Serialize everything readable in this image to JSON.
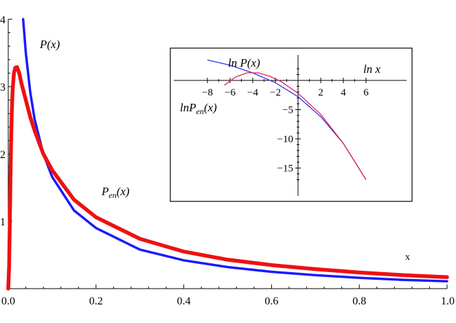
{
  "chart_data": [
    {
      "type": "line",
      "title": "",
      "xlabel": "x",
      "ylabel": "",
      "xlim": [
        0,
        1
      ],
      "ylim": [
        0,
        4
      ],
      "x_ticks": [
        "0.0",
        "0.2",
        "0.4",
        "0.6",
        "0.8",
        "1.0"
      ],
      "y_ticks": [
        "1",
        "2",
        "3",
        "4"
      ],
      "series": [
        {
          "name": "P(x)",
          "color": "#1a1aff",
          "x": [
            0.034,
            0.04,
            0.05,
            0.06,
            0.08,
            0.1,
            0.15,
            0.2,
            0.3,
            0.4,
            0.5,
            0.6,
            0.7,
            0.8,
            0.9,
            1.0
          ],
          "y": [
            4.0,
            3.5,
            2.92,
            2.52,
            2.0,
            1.66,
            1.16,
            0.9,
            0.58,
            0.42,
            0.32,
            0.25,
            0.2,
            0.16,
            0.13,
            0.11
          ]
        },
        {
          "name": "P_en(x)",
          "color": "#ee1111",
          "x": [
            0.0,
            0.002,
            0.004,
            0.006,
            0.008,
            0.01,
            0.013,
            0.016,
            0.02,
            0.025,
            0.03,
            0.04,
            0.05,
            0.06,
            0.08,
            0.1,
            0.15,
            0.2,
            0.3,
            0.4,
            0.5,
            0.6,
            0.7,
            0.8,
            0.9,
            1.0
          ],
          "y": [
            0.0,
            0.35,
            1.2,
            2.0,
            2.6,
            2.95,
            3.2,
            3.28,
            3.29,
            3.2,
            3.05,
            2.8,
            2.55,
            2.35,
            2.0,
            1.76,
            1.32,
            1.06,
            0.74,
            0.55,
            0.43,
            0.35,
            0.29,
            0.24,
            0.2,
            0.17
          ]
        }
      ],
      "annotations": [
        "P(x)",
        "P",
        "en",
        "(x)",
        "x"
      ]
    },
    {
      "type": "line",
      "title": "",
      "xlabel": "ln x",
      "ylabel": "ln P(x)",
      "xlim": [
        -8.5,
        6.5
      ],
      "ylim": [
        -18,
        4
      ],
      "x_ticks": [
        "−8",
        "−6",
        "−4",
        "−2",
        "2",
        "4",
        "6"
      ],
      "y_ticks": [
        "−5",
        "−10",
        "−15"
      ],
      "series": [
        {
          "name": "ln P(x)",
          "color": "#3333ee",
          "x": [
            -8.0,
            -6.0,
            -4.0,
            -2.0,
            0.0,
            2.0,
            4.0,
            6.0
          ],
          "y": [
            3.5,
            2.6,
            1.3,
            -0.4,
            -2.8,
            -6.2,
            -10.8,
            -17.0
          ]
        },
        {
          "name": "lnP_en(x)",
          "color": "#dd2255",
          "x": [
            -6.5,
            -5.5,
            -4.5,
            -3.5,
            -2.5,
            -1.5,
            0.0,
            2.0,
            4.0,
            6.0
          ],
          "y": [
            -0.8,
            0.6,
            1.3,
            1.3,
            0.7,
            -0.2,
            -2.2,
            -5.8,
            -10.8,
            -17.0
          ]
        }
      ],
      "annotations": [
        "ln P(x)",
        "ln x",
        "lnP",
        "en",
        "(x)"
      ]
    }
  ]
}
